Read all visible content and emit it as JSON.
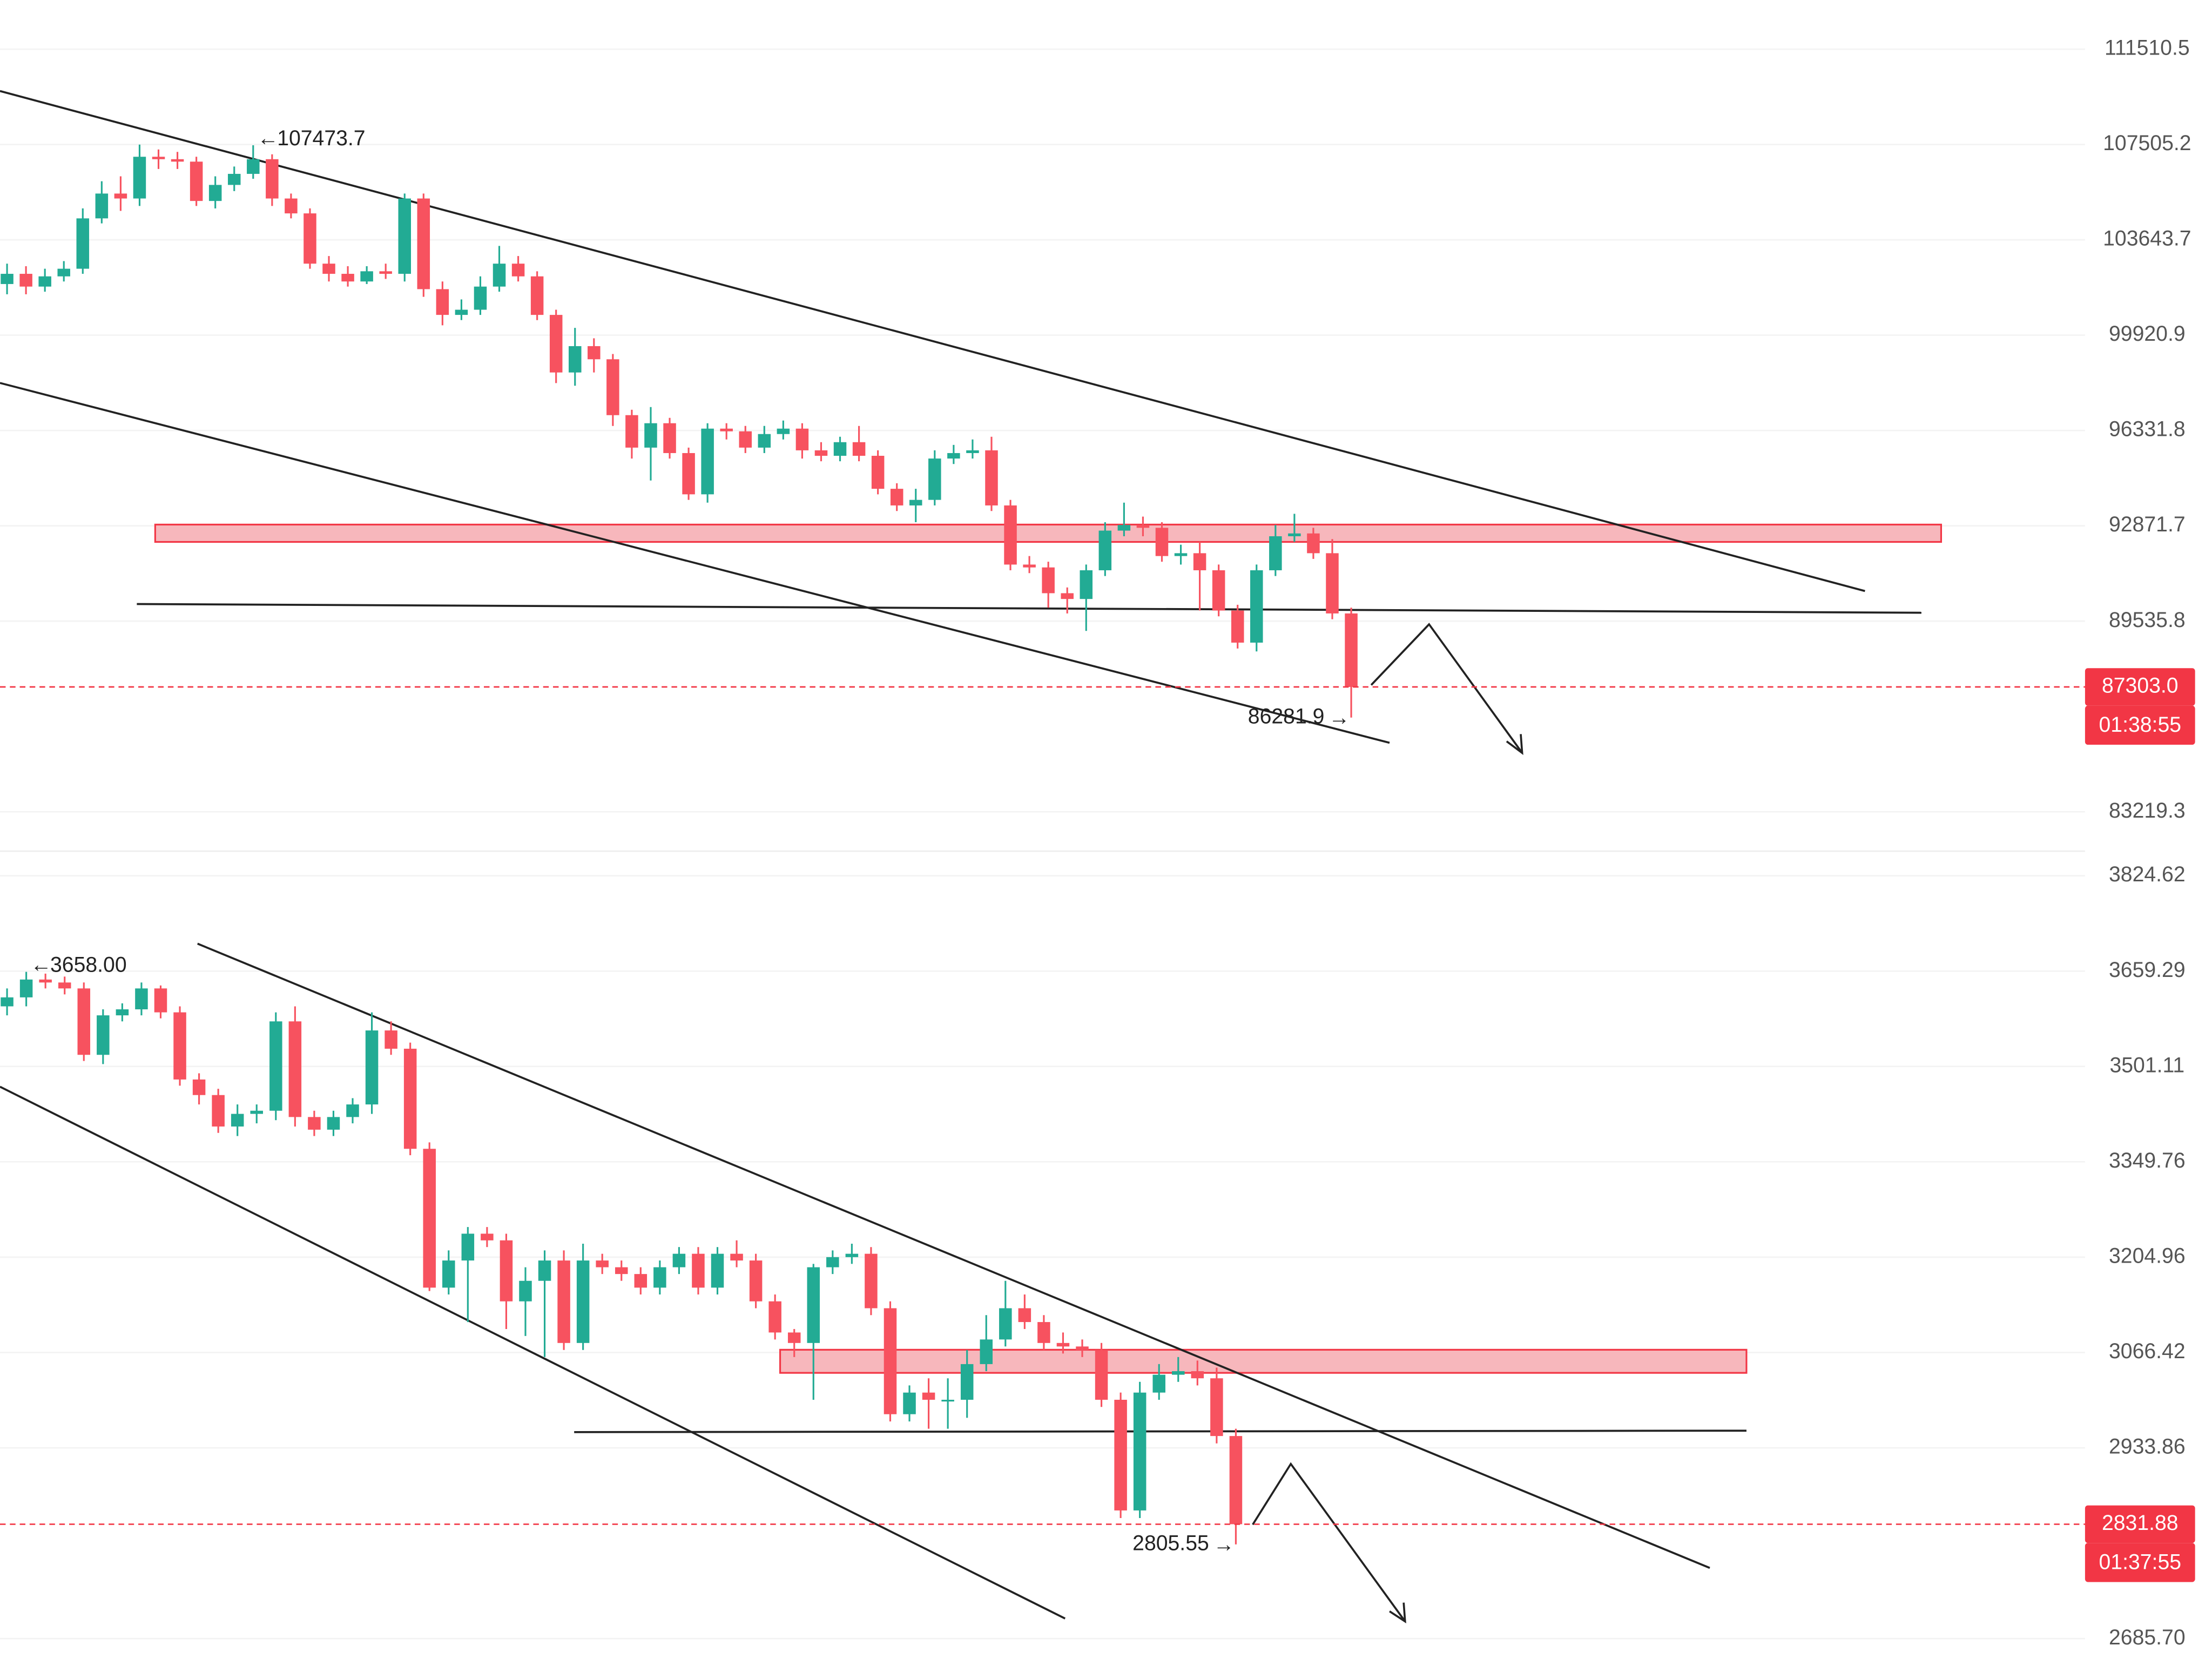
{
  "chart_data": [
    {
      "type": "candlestick",
      "log_scale": true,
      "grid": true,
      "up_color": "#22ab94",
      "down_color": "#f7525f",
      "categories": [
        null,
        null,
        null,
        null,
        null,
        null,
        null,
        null,
        null,
        null,
        null,
        null,
        null,
        null,
        null,
        null,
        null,
        null,
        null,
        null,
        null,
        null,
        null,
        null,
        null,
        null,
        null,
        null,
        null,
        null,
        null,
        null,
        null,
        null,
        null,
        null,
        null,
        null,
        null,
        null,
        null,
        null,
        null,
        null,
        null,
        null,
        null,
        null,
        null,
        null,
        null,
        null,
        null,
        null,
        null,
        null,
        null,
        null,
        null,
        null,
        null,
        null,
        null,
        null,
        null,
        null,
        null,
        null,
        null,
        null,
        null,
        null
      ],
      "open": [
        101900,
        102300,
        101800,
        102200,
        102500,
        104500,
        105500,
        105300,
        107000,
        106900,
        106800,
        105200,
        105850,
        106300,
        106900,
        105300,
        104700,
        102700,
        102300,
        102000,
        102400,
        102300,
        105300,
        101700,
        100700,
        100900,
        101800,
        102700,
        102200,
        100700,
        98500,
        99500,
        99000,
        96900,
        95700,
        96600,
        95500,
        94000,
        96400,
        96300,
        95700,
        96200,
        96400,
        95600,
        95400,
        95900,
        95400,
        94200,
        93600,
        93800,
        95300,
        95500,
        95600,
        93600,
        91500,
        91400,
        90500,
        90300,
        91300,
        92700,
        92900,
        92800,
        91800,
        91900,
        91300,
        89900,
        88800,
        91300,
        92500,
        92600,
        91900,
        89800
      ],
      "high": [
        102700,
        102600,
        102500,
        102800,
        104900,
        106000,
        106200,
        107500,
        107300,
        107200,
        107000,
        106200,
        106600,
        107473.7,
        107100,
        105500,
        104900,
        103000,
        102600,
        102600,
        102700,
        105500,
        105500,
        102000,
        101300,
        102200,
        103400,
        103000,
        102400,
        100900,
        100200,
        99800,
        99200,
        97100,
        97200,
        96800,
        95700,
        96600,
        96600,
        96500,
        96500,
        96700,
        96600,
        95900,
        96100,
        96500,
        95600,
        94400,
        94200,
        95600,
        95800,
        96000,
        96100,
        93800,
        91800,
        91600,
        90700,
        91500,
        93000,
        93700,
        93200,
        93000,
        92200,
        92300,
        91500,
        90100,
        91500,
        92900,
        93300,
        92800,
        92400,
        90000
      ],
      "low": [
        101500,
        101500,
        101600,
        102000,
        102300,
        104300,
        104800,
        105000,
        106500,
        106500,
        105000,
        104900,
        105600,
        106100,
        105000,
        104500,
        102500,
        102000,
        101800,
        101900,
        102100,
        102000,
        101400,
        100300,
        100500,
        100700,
        101600,
        102000,
        100500,
        98100,
        98000,
        98500,
        96500,
        95300,
        94500,
        95300,
        93800,
        93700,
        96000,
        95500,
        95500,
        96000,
        95300,
        95200,
        95200,
        95200,
        94000,
        93400,
        93000,
        93600,
        95100,
        95300,
        93400,
        91300,
        91200,
        90000,
        89800,
        89200,
        91100,
        92500,
        92500,
        91600,
        91500,
        89900,
        89700,
        88600,
        88500,
        91100,
        92300,
        91700,
        89600,
        86281.9
      ],
      "close": [
        102300,
        101800,
        102200,
        102500,
        104500,
        105500,
        105300,
        107000,
        106900,
        106800,
        105200,
        105850,
        106300,
        106900,
        105300,
        104700,
        102700,
        102300,
        102000,
        102400,
        102300,
        105300,
        101700,
        100700,
        100900,
        101800,
        102700,
        102200,
        100700,
        98500,
        99500,
        99000,
        96900,
        95700,
        96600,
        95500,
        94000,
        96400,
        96300,
        95700,
        96200,
        96400,
        95600,
        95400,
        95900,
        95400,
        94200,
        93600,
        93800,
        95300,
        95500,
        95600,
        93600,
        91500,
        91400,
        90500,
        90300,
        91300,
        92700,
        92900,
        92800,
        91800,
        91900,
        91300,
        89900,
        88800,
        91300,
        92500,
        92600,
        91900,
        89800,
        87303
      ],
      "ylim": [
        82016,
        113634
      ],
      "yticks": [
        111510.5,
        107505.2,
        103643.7,
        99920.9,
        96331.8,
        92871.7,
        89535.8,
        83219.3
      ],
      "last_price": {
        "value": 87303,
        "label": "87303.0"
      },
      "countdown": "01:38:55",
      "high_label": 107473.7,
      "low_label": 86281.9
    },
    {
      "type": "candlestick",
      "log_scale": true,
      "grid": true,
      "up_color": "#22ab94",
      "down_color": "#f7525f",
      "categories": [
        null,
        null,
        null,
        null,
        null,
        null,
        null,
        null,
        null,
        null,
        null,
        null,
        null,
        null,
        null,
        null,
        null,
        null,
        null,
        null,
        null,
        null,
        null,
        null,
        null,
        null,
        null,
        null,
        null,
        null,
        null,
        null,
        null,
        null,
        null,
        null,
        null,
        null,
        null,
        null,
        null,
        null,
        null,
        null,
        null,
        null,
        null,
        null,
        null,
        null,
        null,
        null,
        null,
        null,
        null,
        null,
        null,
        null,
        null,
        null,
        null,
        null,
        null,
        null,
        null
      ],
      "open": [
        3600,
        3615,
        3645,
        3640,
        3630,
        3520,
        3585,
        3595,
        3630,
        3590,
        3480,
        3455,
        3405,
        3425,
        3430,
        3575,
        3420,
        3400,
        3420,
        3440,
        3560,
        3530,
        3370,
        3160,
        3200,
        3240,
        3230,
        3140,
        3170,
        3200,
        3080,
        3200,
        3190,
        3180,
        3160,
        3190,
        3210,
        3160,
        3210,
        3200,
        3140,
        3095,
        3080,
        3190,
        3205,
        3210,
        3130,
        2980,
        3010,
        3000,
        3000,
        3050,
        3085,
        3130,
        3110,
        3080,
        3075,
        3070,
        3000,
        2850,
        3010,
        3035,
        3040,
        3030,
        2950
      ],
      "high": [
        3630,
        3658,
        3655,
        3650,
        3640,
        3595,
        3605,
        3640,
        3635,
        3600,
        3490,
        3465,
        3440,
        3440,
        3590,
        3600,
        3430,
        3430,
        3450,
        3590,
        3575,
        3540,
        3380,
        3215,
        3250,
        3250,
        3240,
        3190,
        3215,
        3215,
        3225,
        3210,
        3200,
        3190,
        3200,
        3220,
        3220,
        3220,
        3230,
        3210,
        3150,
        3100,
        3195,
        3215,
        3225,
        3220,
        3140,
        3020,
        3030,
        3030,
        3070,
        3120,
        3170,
        3150,
        3120,
        3095,
        3085,
        3080,
        3010,
        3025,
        3050,
        3060,
        3055,
        3045,
        2960
      ],
      "low": [
        3585,
        3600,
        3630,
        3620,
        3510,
        3505,
        3575,
        3585,
        3580,
        3470,
        3440,
        3395,
        3390,
        3410,
        3415,
        3405,
        3390,
        3390,
        3410,
        3425,
        3520,
        3360,
        3155,
        3150,
        3110,
        3220,
        3100,
        3090,
        3060,
        3070,
        3070,
        3180,
        3170,
        3150,
        3150,
        3180,
        3150,
        3150,
        3190,
        3130,
        3085,
        3060,
        3000,
        3180,
        3195,
        3120,
        2970,
        2970,
        2960,
        2960,
        2975,
        3040,
        3075,
        3100,
        3070,
        3065,
        3060,
        2990,
        2840,
        2840,
        3000,
        3025,
        3020,
        2940,
        2805.55
      ],
      "close": [
        3615,
        3645,
        3640,
        3630,
        3520,
        3585,
        3595,
        3630,
        3590,
        3480,
        3455,
        3405,
        3425,
        3430,
        3575,
        3420,
        3400,
        3420,
        3440,
        3560,
        3530,
        3370,
        3160,
        3200,
        3240,
        3230,
        3140,
        3170,
        3200,
        3080,
        3200,
        3190,
        3180,
        3160,
        3190,
        3210,
        3160,
        3210,
        3200,
        3140,
        3095,
        3080,
        3190,
        3205,
        3210,
        3130,
        2980,
        3010,
        3000,
        3000,
        3050,
        3085,
        3130,
        3110,
        3080,
        3075,
        3070,
        3000,
        2850,
        3010,
        3035,
        3040,
        3030,
        2950,
        2831.88
      ],
      "ylim": [
        2660.4,
        3865.8
      ],
      "yticks": [
        3824.62,
        3659.29,
        3501.11,
        3349.76,
        3204.96,
        3066.42,
        2933.86,
        {
          "value": 2685.7,
          "label": "2685.70"
        }
      ],
      "last_price": 2831.88,
      "countdown": "01:37:55",
      "high_label": {
        "value": 3658,
        "label": "3658.00"
      },
      "low_label": 2805.55
    }
  ]
}
